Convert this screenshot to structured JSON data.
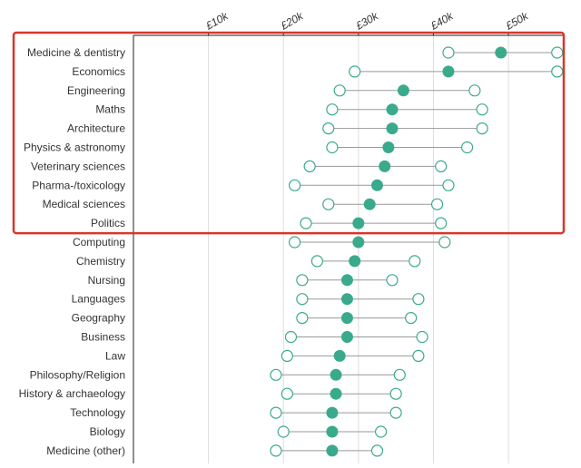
{
  "chart_data": {
    "type": "dot-range",
    "title": "",
    "xlabel": "",
    "ylabel": "",
    "x_ticks": [
      "£10k",
      "£20k",
      "£30k",
      "£40k",
      "£50k"
    ],
    "x_tick_values": [
      10000,
      20000,
      30000,
      40000,
      50000
    ],
    "xlim": [
      0,
      57500
    ],
    "grid": "vertical",
    "highlight": {
      "from": "Medicine & dentistry",
      "to": "Politics",
      "color": "#d9362b"
    },
    "colors": {
      "median": "#3aaa8c",
      "range": "#3aaa8c",
      "line": "#999999"
    },
    "rows": [
      {
        "subject": "Medicine & dentistry",
        "low": 42000,
        "median": 49000,
        "high": 56500
      },
      {
        "subject": "Economics",
        "low": 29500,
        "median": 42000,
        "high": 56500
      },
      {
        "subject": "Engineering",
        "low": 27500,
        "median": 36000,
        "high": 45500
      },
      {
        "subject": "Maths",
        "low": 26500,
        "median": 34500,
        "high": 46500
      },
      {
        "subject": "Architecture",
        "low": 26000,
        "median": 34500,
        "high": 46500
      },
      {
        "subject": "Physics & astronomy",
        "low": 26500,
        "median": 34000,
        "high": 44500
      },
      {
        "subject": "Veterinary sciences",
        "low": 23500,
        "median": 33500,
        "high": 41000
      },
      {
        "subject": "Pharma-/toxicology",
        "low": 21500,
        "median": 32500,
        "high": 42000
      },
      {
        "subject": "Medical sciences",
        "low": 26000,
        "median": 31500,
        "high": 40500
      },
      {
        "subject": "Politics",
        "low": 23000,
        "median": 30000,
        "high": 41000
      },
      {
        "subject": "Computing",
        "low": 21500,
        "median": 30000,
        "high": 41500
      },
      {
        "subject": "Chemistry",
        "low": 24500,
        "median": 29500,
        "high": 37500
      },
      {
        "subject": "Nursing",
        "low": 22500,
        "median": 28500,
        "high": 34500
      },
      {
        "subject": "Languages",
        "low": 22500,
        "median": 28500,
        "high": 38000
      },
      {
        "subject": "Geography",
        "low": 22500,
        "median": 28500,
        "high": 37000
      },
      {
        "subject": "Business",
        "low": 21000,
        "median": 28500,
        "high": 38500
      },
      {
        "subject": "Law",
        "low": 20500,
        "median": 27500,
        "high": 38000
      },
      {
        "subject": "Philosophy/Religion",
        "low": 19000,
        "median": 27000,
        "high": 35500
      },
      {
        "subject": "History & archaeology",
        "low": 20500,
        "median": 27000,
        "high": 35000
      },
      {
        "subject": "Technology",
        "low": 19000,
        "median": 26500,
        "high": 35000
      },
      {
        "subject": "Biology",
        "low": 20000,
        "median": 26500,
        "high": 33000
      },
      {
        "subject": "Medicine (other)",
        "low": 19000,
        "median": 26500,
        "high": 32500
      }
    ]
  }
}
